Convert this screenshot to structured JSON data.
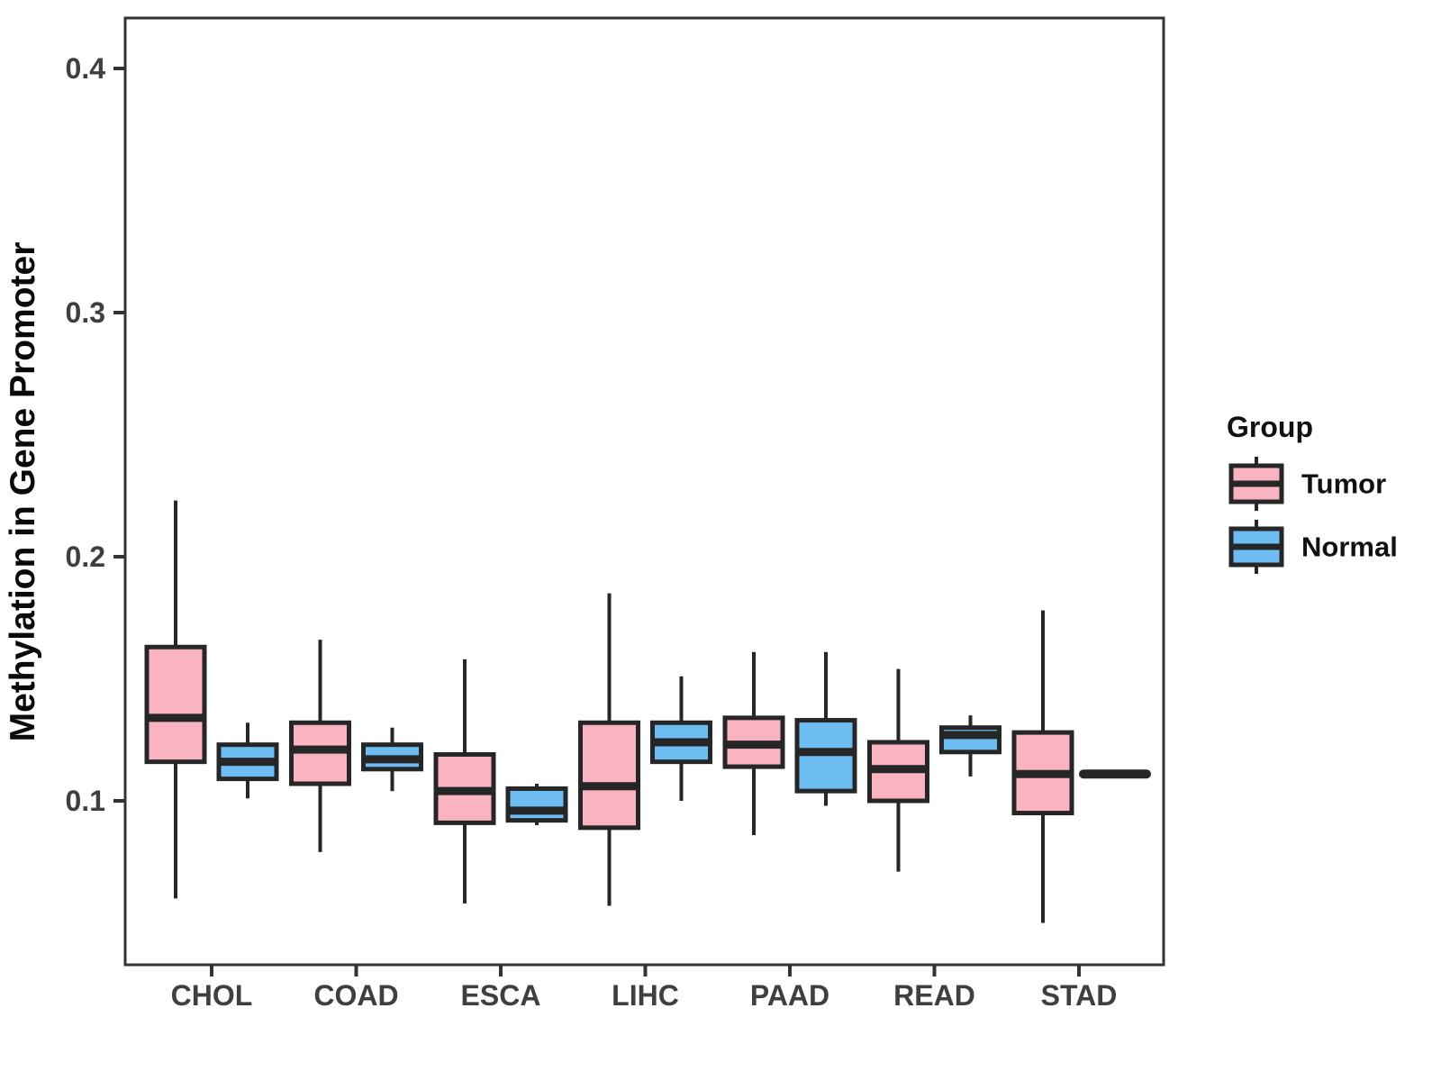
{
  "chart_data": {
    "type": "boxplot",
    "title": "",
    "xlabel": "",
    "ylabel": "Methylation in Gene Promoter",
    "categories": [
      "CHOL",
      "COAD",
      "ESCA",
      "LIHC",
      "PAAD",
      "READ",
      "STAD"
    ],
    "yticks": [
      "0.1",
      "0.2",
      "0.3",
      "0.4"
    ],
    "ytick_values": [
      0.1,
      0.2,
      0.3,
      0.4
    ],
    "ylim": [
      0.033,
      0.421
    ],
    "grid": false,
    "legend_position": "right",
    "legend": {
      "title": "Group",
      "entries": [
        {
          "label": "Tumor",
          "color": "#FAB3C0"
        },
        {
          "label": "Normal",
          "color": "#6DBDF2"
        }
      ]
    },
    "colors": {
      "tumor_fill": "#FAB3C0",
      "normal_fill": "#6DBDF2",
      "box_stroke": "#262626",
      "axis_stroke": "#333333",
      "tick_text": "#3f3f3f"
    },
    "series": [
      {
        "name": "Tumor",
        "color": "#FAB3C0",
        "boxes": [
          {
            "category": "CHOL",
            "min": 0.06,
            "q1": 0.116,
            "median": 0.134,
            "q3": 0.163,
            "max": 0.223
          },
          {
            "category": "COAD",
            "min": 0.079,
            "q1": 0.107,
            "median": 0.121,
            "q3": 0.132,
            "max": 0.166
          },
          {
            "category": "ESCA",
            "min": 0.058,
            "q1": 0.091,
            "median": 0.104,
            "q3": 0.119,
            "max": 0.158
          },
          {
            "category": "LIHC",
            "min": 0.057,
            "q1": 0.089,
            "median": 0.106,
            "q3": 0.132,
            "max": 0.185
          },
          {
            "category": "PAAD",
            "min": 0.086,
            "q1": 0.114,
            "median": 0.123,
            "q3": 0.134,
            "max": 0.161
          },
          {
            "category": "READ",
            "min": 0.071,
            "q1": 0.1,
            "median": 0.113,
            "q3": 0.124,
            "max": 0.154
          },
          {
            "category": "STAD",
            "min": 0.05,
            "q1": 0.095,
            "median": 0.111,
            "q3": 0.128,
            "max": 0.178
          }
        ]
      },
      {
        "name": "Normal",
        "color": "#6DBDF2",
        "boxes": [
          {
            "category": "CHOL",
            "min": 0.101,
            "q1": 0.109,
            "median": 0.116,
            "q3": 0.123,
            "max": 0.132
          },
          {
            "category": "COAD",
            "min": 0.104,
            "q1": 0.113,
            "median": 0.117,
            "q3": 0.123,
            "max": 0.13
          },
          {
            "category": "ESCA",
            "min": 0.09,
            "q1": 0.092,
            "median": 0.096,
            "q3": 0.105,
            "max": 0.107
          },
          {
            "category": "LIHC",
            "min": 0.1,
            "q1": 0.116,
            "median": 0.124,
            "q3": 0.132,
            "max": 0.151
          },
          {
            "category": "PAAD",
            "min": 0.098,
            "q1": 0.104,
            "median": 0.12,
            "q3": 0.133,
            "max": 0.161
          },
          {
            "category": "READ",
            "min": 0.11,
            "q1": 0.12,
            "median": 0.127,
            "q3": 0.13,
            "max": 0.135
          },
          {
            "category": "STAD",
            "min": 0.111,
            "q1": 0.111,
            "median": 0.111,
            "q3": 0.111,
            "max": 0.111
          }
        ]
      }
    ]
  }
}
